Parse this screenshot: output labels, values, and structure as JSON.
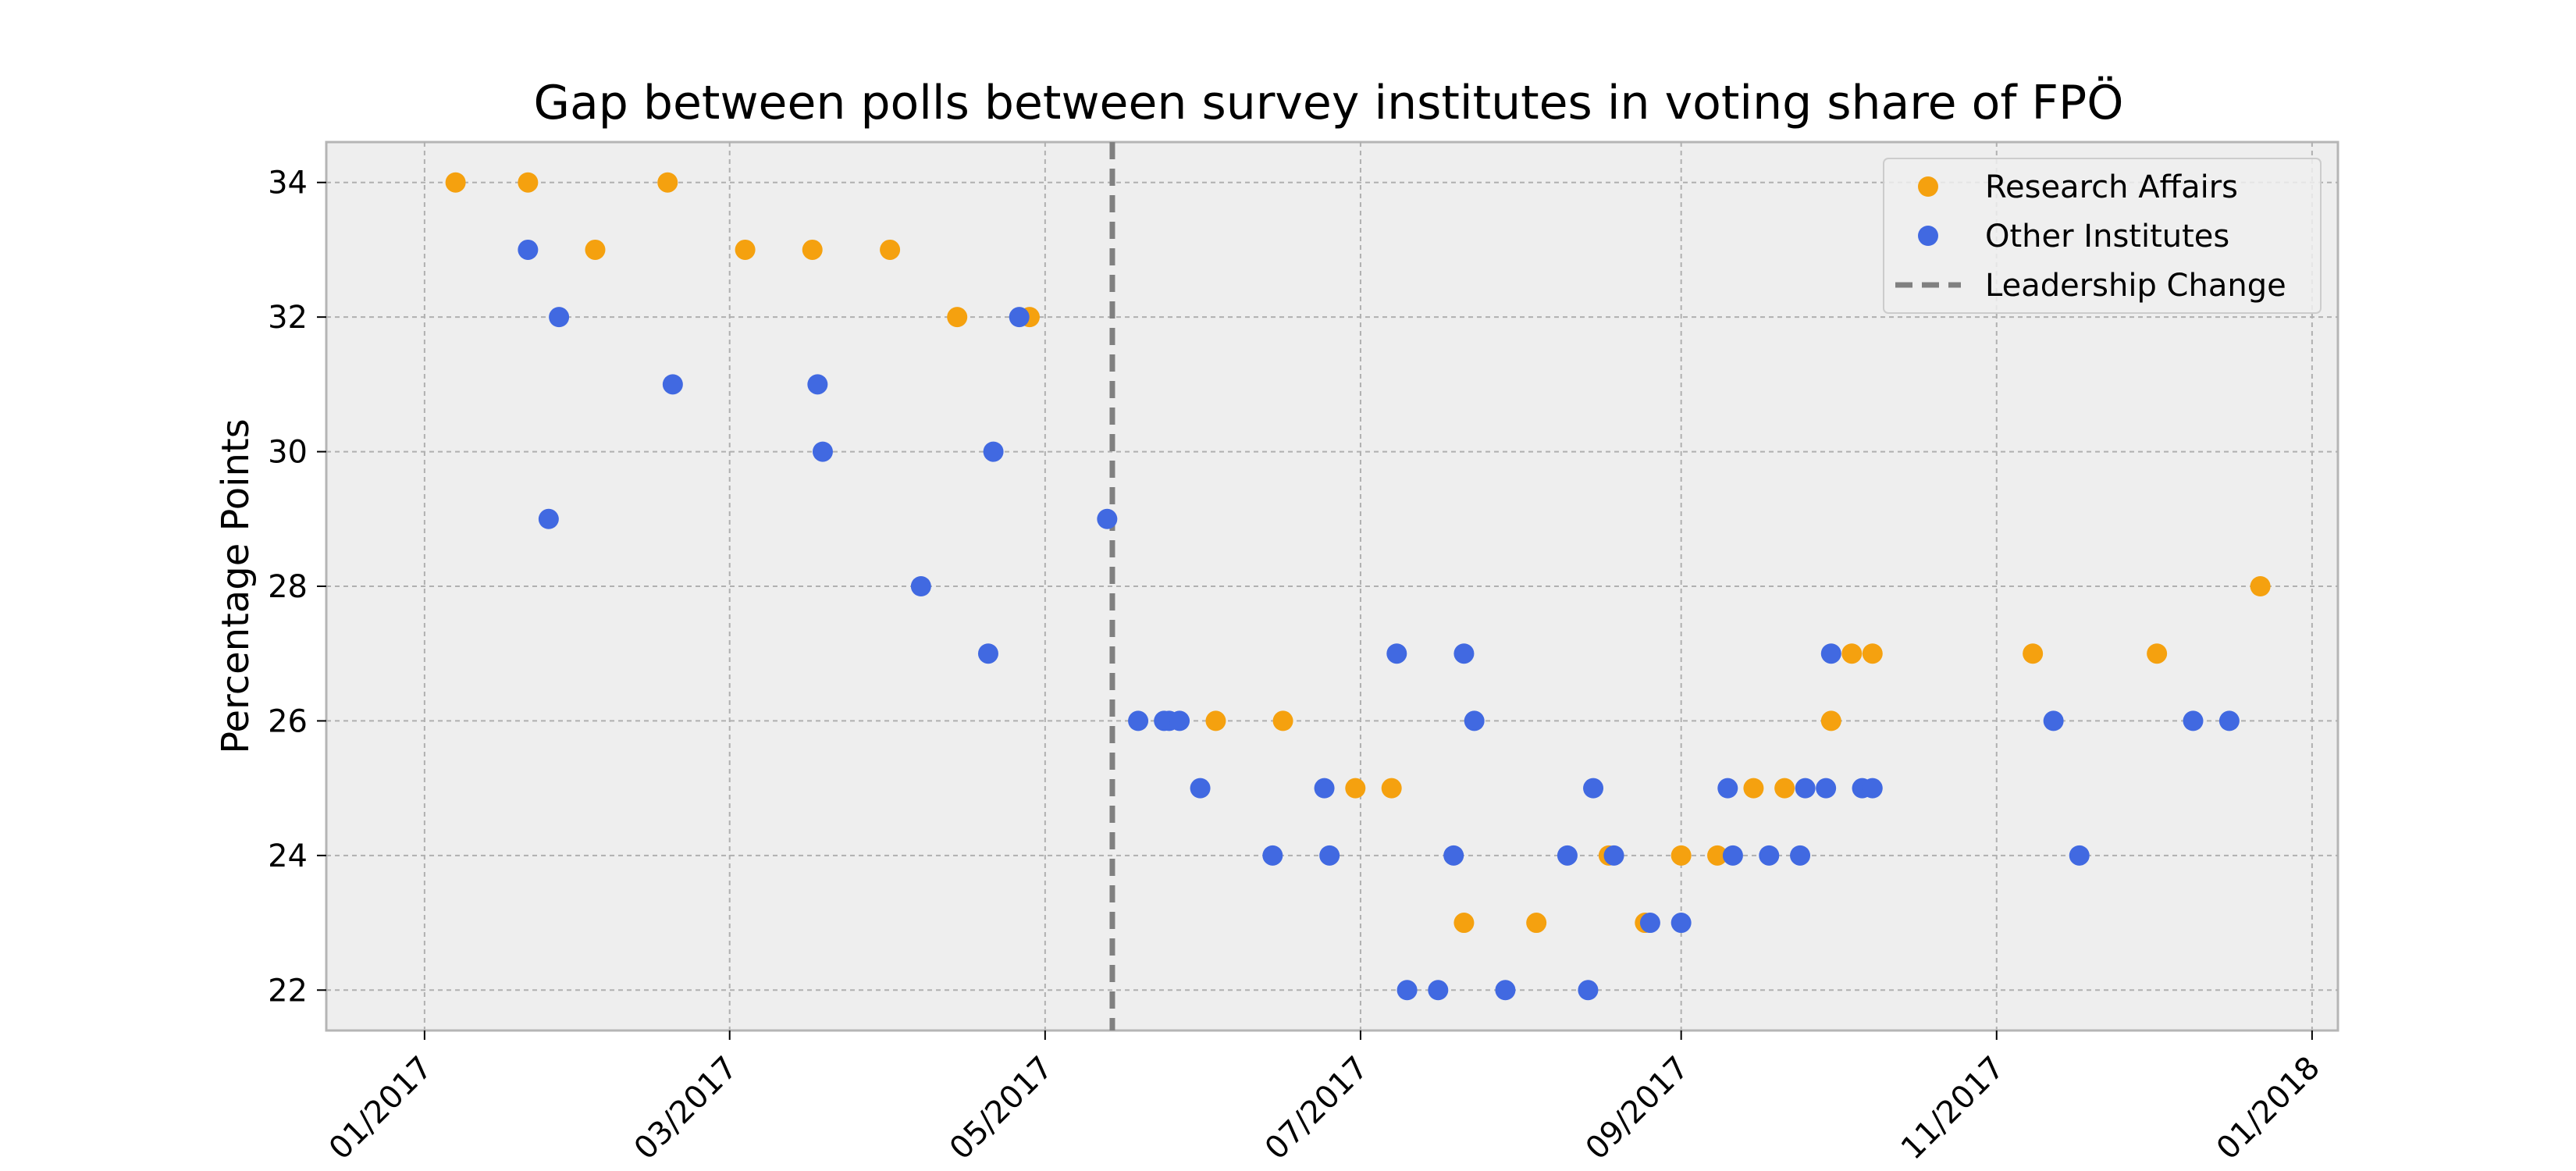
{
  "chart_data": {
    "type": "scatter",
    "title": "Gap between polls between survey institutes in voting share of FPÖ",
    "xlabel": "",
    "ylabel": "Percentage Points",
    "xlim": [
      "2016-12-13",
      "2018-01-06"
    ],
    "ylim": [
      21.4,
      34.6
    ],
    "xticks": [
      "2017-01-01",
      "2017-03-01",
      "2017-05-01",
      "2017-07-01",
      "2017-09-01",
      "2017-11-01",
      "2018-01-01"
    ],
    "xtick_labels": [
      "01/2017",
      "03/2017",
      "05/2017",
      "07/2017",
      "09/2017",
      "11/2017",
      "01/2018"
    ],
    "yticks": [
      22,
      24,
      26,
      28,
      30,
      32,
      34
    ],
    "grid": true,
    "legend_position": "top-right",
    "colors": {
      "research": "#f5a10f",
      "other": "#4169e1",
      "vline": "#808080",
      "plot_bg": "#eeeeee",
      "frame": "#b5b5b5"
    },
    "legend": [
      "Research Affairs",
      "Other Institutes",
      "Leadership Change"
    ],
    "vline": {
      "name": "Leadership Change",
      "x": "2017-05-14",
      "style": "dashed"
    },
    "series": [
      {
        "name": "Research Affairs",
        "color": "#f5a10f",
        "points": [
          [
            "2017-01-07",
            34
          ],
          [
            "2017-01-21",
            34
          ],
          [
            "2017-02-03",
            33
          ],
          [
            "2017-02-17",
            34
          ],
          [
            "2017-03-04",
            33
          ],
          [
            "2017-03-17",
            33
          ],
          [
            "2017-04-01",
            33
          ],
          [
            "2017-04-14",
            32
          ],
          [
            "2017-04-28",
            32
          ],
          [
            "2017-06-03",
            26
          ],
          [
            "2017-06-16",
            26
          ],
          [
            "2017-06-30",
            25
          ],
          [
            "2017-07-07",
            25
          ],
          [
            "2017-07-21",
            23
          ],
          [
            "2017-08-04",
            23
          ],
          [
            "2017-08-18",
            24
          ],
          [
            "2017-08-25",
            23
          ],
          [
            "2017-09-01",
            24
          ],
          [
            "2017-09-08",
            24
          ],
          [
            "2017-09-15",
            25
          ],
          [
            "2017-09-21",
            25
          ],
          [
            "2017-09-30",
            26
          ],
          [
            "2017-10-04",
            27
          ],
          [
            "2017-10-08",
            27
          ],
          [
            "2017-11-08",
            27
          ],
          [
            "2017-12-02",
            27
          ],
          [
            "2017-12-22",
            28
          ]
        ]
      },
      {
        "name": "Other Institutes",
        "color": "#4169e1",
        "points": [
          [
            "2017-01-21",
            33
          ],
          [
            "2017-01-25",
            29
          ],
          [
            "2017-01-27",
            32
          ],
          [
            "2017-02-18",
            31
          ],
          [
            "2017-03-18",
            31
          ],
          [
            "2017-03-19",
            30
          ],
          [
            "2017-04-07",
            28
          ],
          [
            "2017-04-21",
            30
          ],
          [
            "2017-04-20",
            27
          ],
          [
            "2017-04-26",
            32
          ],
          [
            "2017-05-13",
            29
          ],
          [
            "2017-05-19",
            26
          ],
          [
            "2017-05-24",
            26
          ],
          [
            "2017-05-25",
            26
          ],
          [
            "2017-05-27",
            26
          ],
          [
            "2017-05-31",
            25
          ],
          [
            "2017-06-14",
            24
          ],
          [
            "2017-06-24",
            25
          ],
          [
            "2017-06-25",
            24
          ],
          [
            "2017-07-08",
            27
          ],
          [
            "2017-07-10",
            22
          ],
          [
            "2017-07-16",
            22
          ],
          [
            "2017-07-19",
            24
          ],
          [
            "2017-07-21",
            27
          ],
          [
            "2017-07-23",
            26
          ],
          [
            "2017-07-29",
            22
          ],
          [
            "2017-08-10",
            24
          ],
          [
            "2017-08-14",
            22
          ],
          [
            "2017-08-15",
            25
          ],
          [
            "2017-08-19",
            24
          ],
          [
            "2017-08-26",
            23
          ],
          [
            "2017-09-01",
            23
          ],
          [
            "2017-09-10",
            25
          ],
          [
            "2017-09-11",
            24
          ],
          [
            "2017-09-18",
            24
          ],
          [
            "2017-09-24",
            24
          ],
          [
            "2017-09-25",
            25
          ],
          [
            "2017-09-29",
            25
          ],
          [
            "2017-09-30",
            27
          ],
          [
            "2017-10-06",
            25
          ],
          [
            "2017-10-08",
            25
          ],
          [
            "2017-11-12",
            26
          ],
          [
            "2017-11-17",
            24
          ],
          [
            "2017-12-09",
            26
          ],
          [
            "2017-12-16",
            26
          ]
        ]
      }
    ]
  }
}
